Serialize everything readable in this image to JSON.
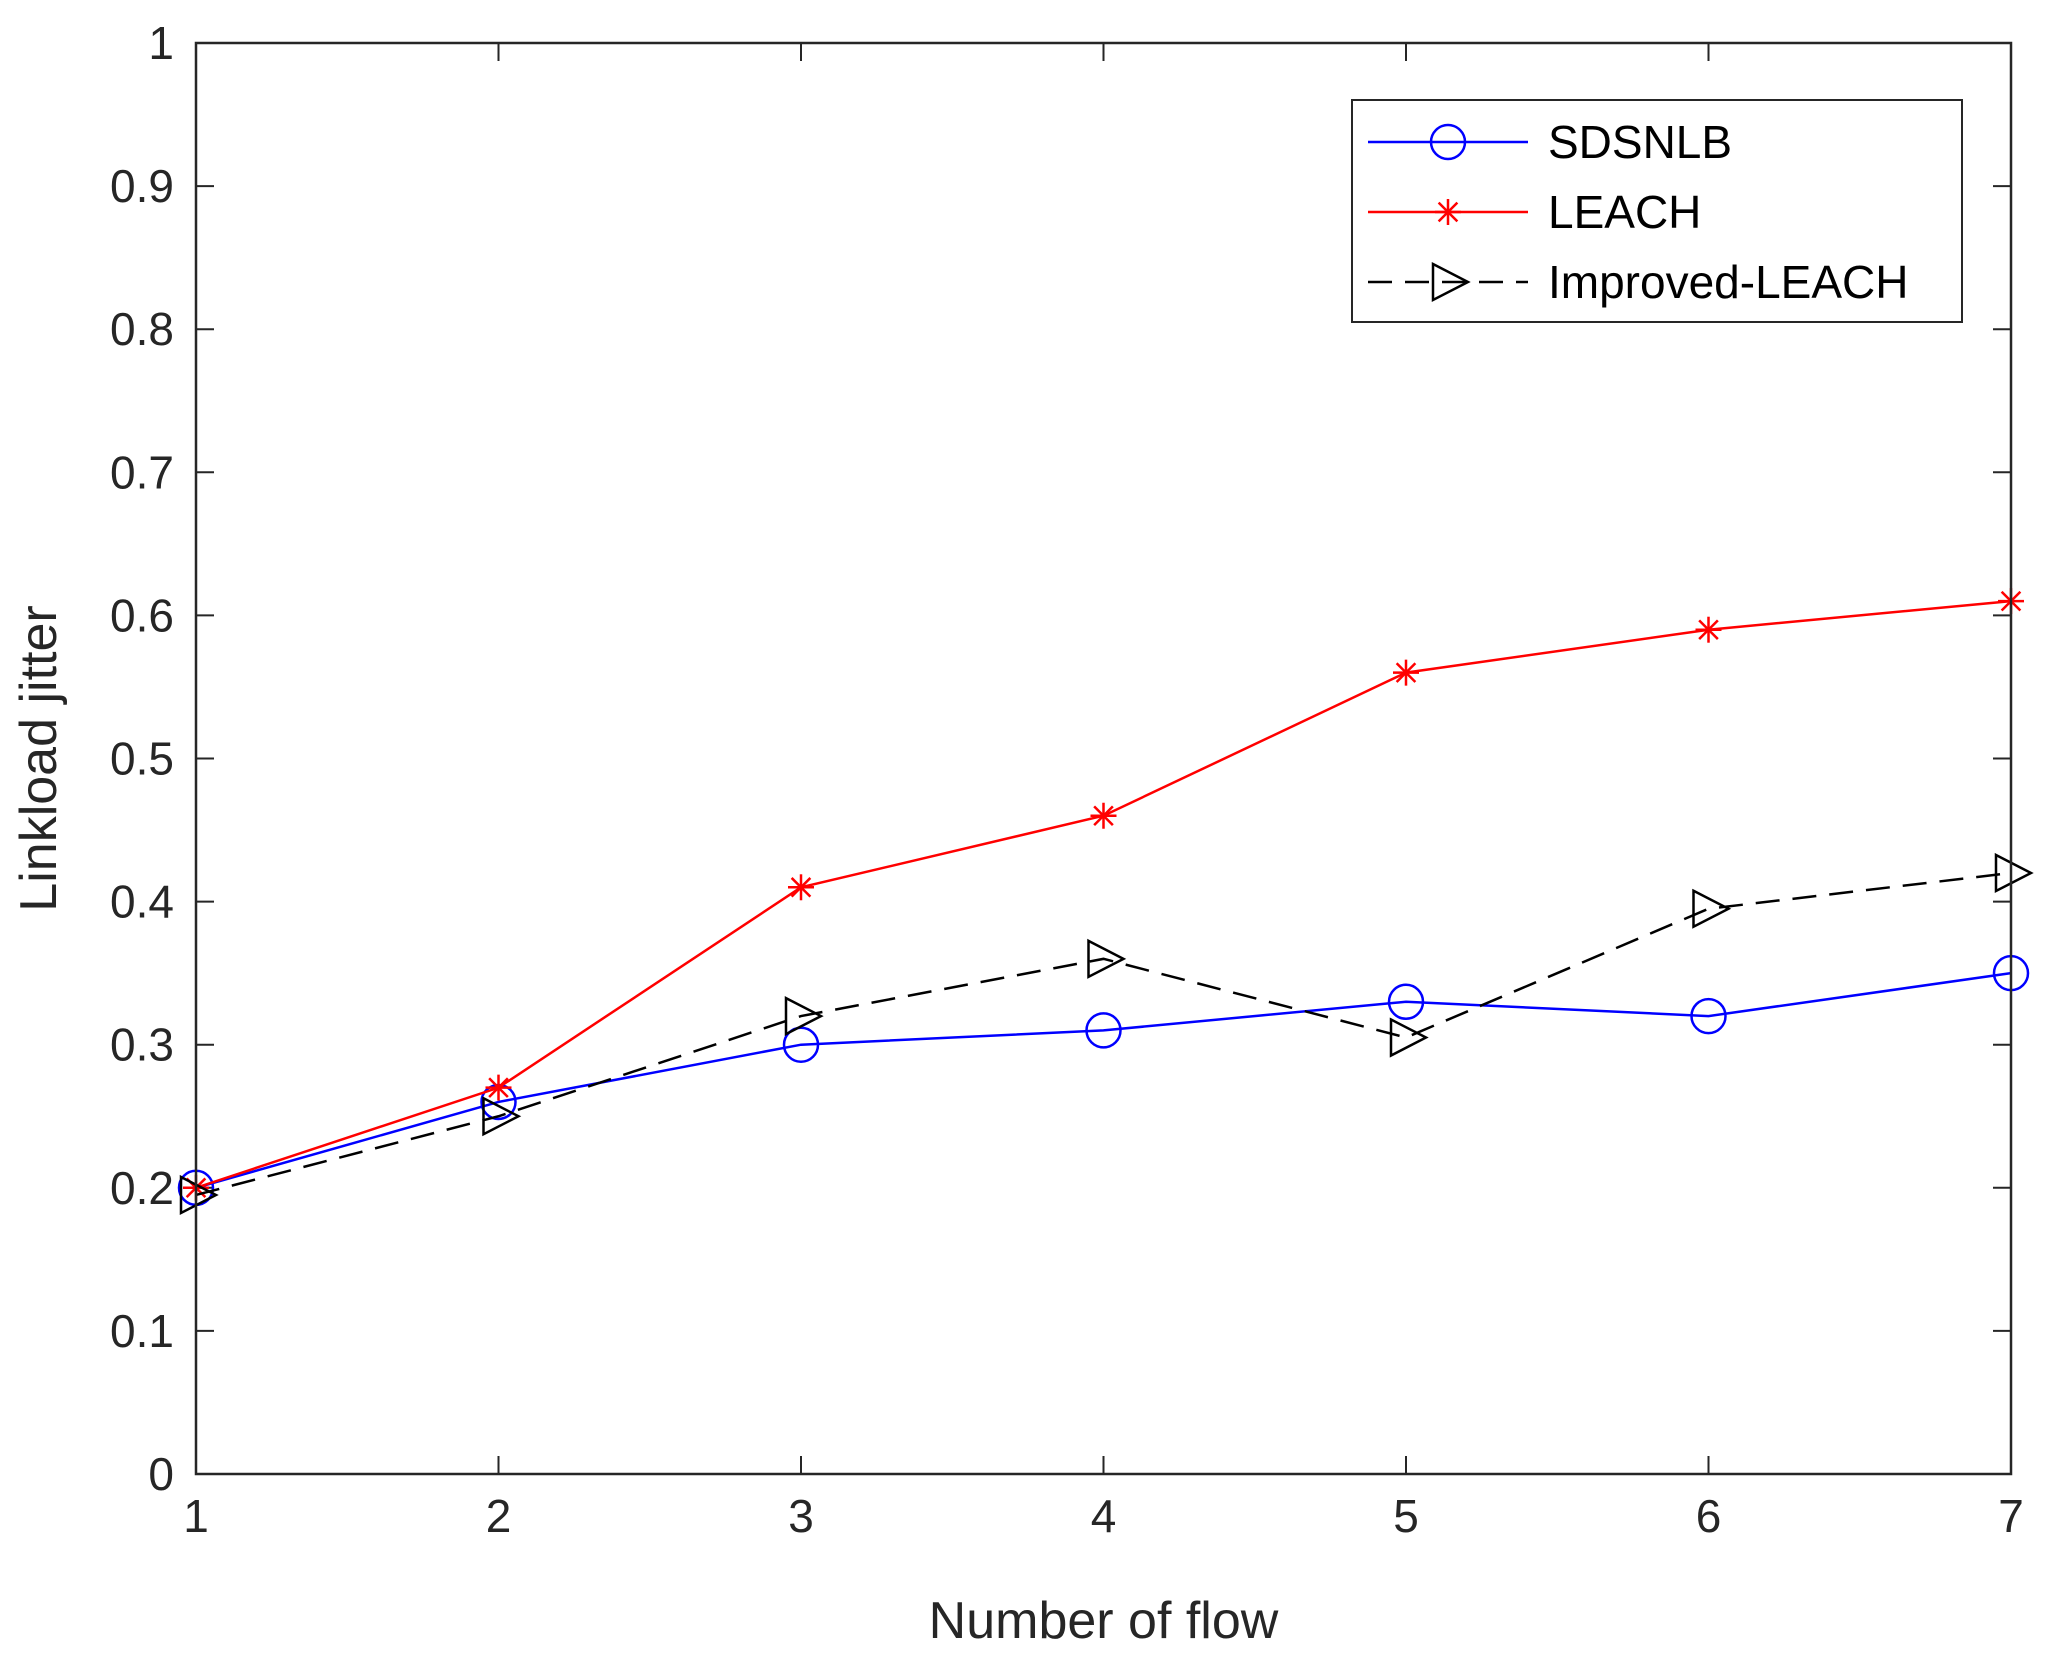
{
  "chart_data": {
    "type": "line",
    "title": "",
    "xlabel": "Number of flow",
    "ylabel": "Linkload jitter",
    "x": [
      1,
      2,
      3,
      4,
      5,
      6,
      7
    ],
    "xlim": [
      1,
      7
    ],
    "ylim": [
      0,
      1
    ],
    "xticks": [
      "1",
      "2",
      "3",
      "4",
      "5",
      "6",
      "7"
    ],
    "yticks": [
      "0",
      "0.1",
      "0.2",
      "0.3",
      "0.4",
      "0.5",
      "0.6",
      "0.7",
      "0.8",
      "0.9",
      "1"
    ],
    "grid": false,
    "legend_position": "top-right",
    "series": [
      {
        "name": "SDSNLB",
        "color": "#0000ff",
        "marker": "circle",
        "linestyle": "solid",
        "values": [
          0.2,
          0.26,
          0.3,
          0.31,
          0.33,
          0.32,
          0.35
        ]
      },
      {
        "name": "LEACH",
        "color": "#ff0000",
        "marker": "asterisk",
        "linestyle": "solid",
        "values": [
          0.2,
          0.27,
          0.41,
          0.46,
          0.56,
          0.59,
          0.61
        ]
      },
      {
        "name": "Improved-LEACH",
        "color": "#000000",
        "marker": "triangle-right",
        "linestyle": "dashed",
        "values": [
          0.195,
          0.25,
          0.32,
          0.36,
          0.305,
          0.395,
          0.42
        ]
      }
    ]
  }
}
